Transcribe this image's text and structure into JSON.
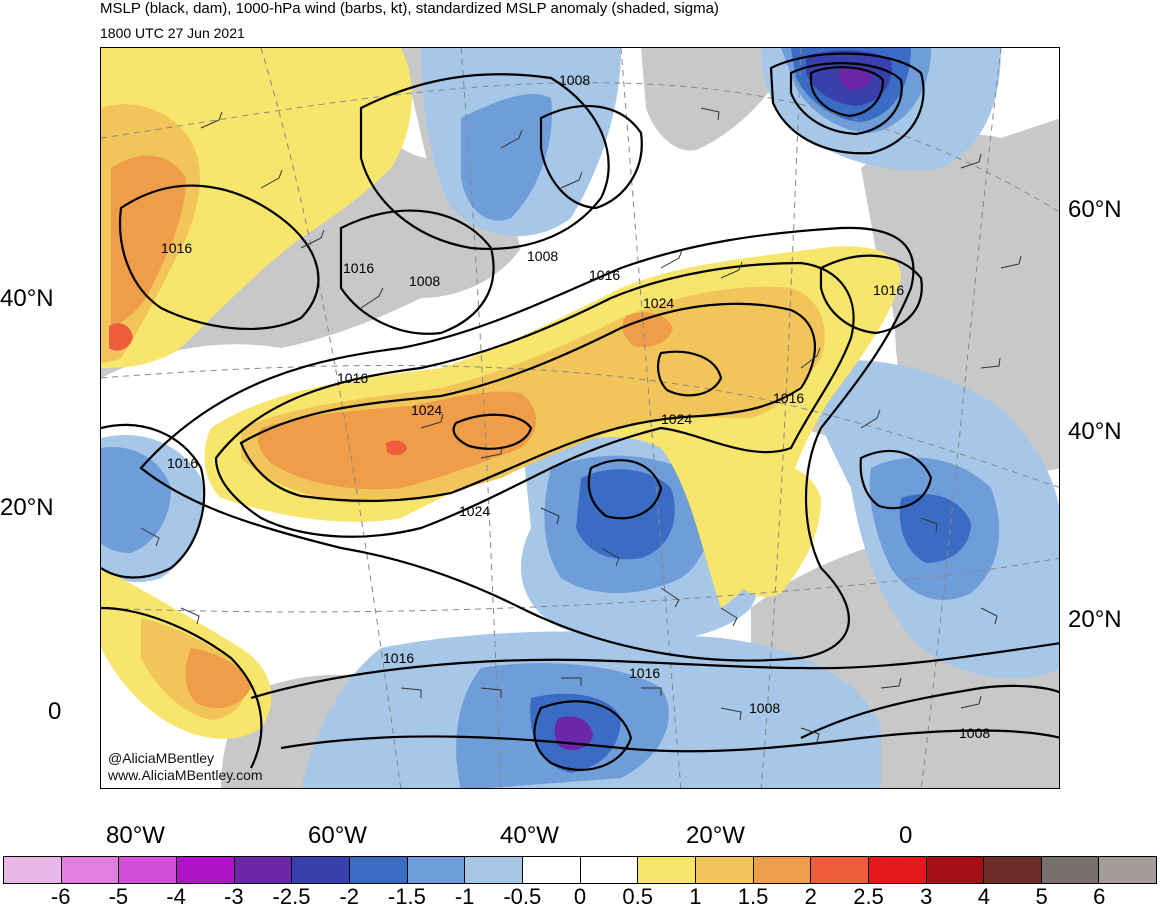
{
  "header": {
    "title": "MSLP (black, dam), 1000-hPa wind (barbs, kt), standardized MSLP anomaly (shaded, sigma)",
    "valid_time": "1800 UTC 27 Jun 2021"
  },
  "credits": {
    "handle": "@AliciaMBentley",
    "website": "www.AliciaMBentley.com"
  },
  "axes": {
    "left_lat_labels": [
      "40°N",
      "20°N",
      "0"
    ],
    "right_lat_labels": [
      "60°N",
      "40°N",
      "20°N"
    ],
    "bottom_lon_labels": [
      "80°W",
      "60°W",
      "40°W",
      "20°W",
      "0"
    ]
  },
  "isobar_labels": [
    "1016",
    "1016",
    "1008",
    "1008",
    "1016",
    "1024",
    "1016",
    "1024",
    "1016",
    "1016",
    "1016",
    "1024",
    "1024",
    "1008",
    "1016",
    "1016",
    "1008",
    "1008"
  ],
  "colorbar": {
    "labels": [
      "-6",
      "-5",
      "-4",
      "-3",
      "-2.5",
      "-2",
      "-1.5",
      "-1",
      "-0.5",
      "0",
      "0.5",
      "1",
      "1.5",
      "2",
      "2.5",
      "3",
      "4",
      "5",
      "6"
    ],
    "colors": [
      "#e9b8e6",
      "#e17fe0",
      "#d44ed9",
      "#b012c8",
      "#6a27a8",
      "#3a3fae",
      "#3a6cc4",
      "#6e9dd9",
      "#a6c7e7",
      "#ffffff",
      "#ffffff",
      "#f8e66c",
      "#f2c55a",
      "#ef9d48",
      "#ee5e3d",
      "#e5171a",
      "#a40f16",
      "#6e2b2a",
      "#77706f",
      "#a39c9b"
    ]
  },
  "colors": {
    "land_gray": "#c8c8c8",
    "anomaly_neg_light": "#a6c7e7",
    "anomaly_neg_mid": "#6e9dd9",
    "anomaly_neg_strong": "#3a6cc4",
    "anomaly_neg_deep": "#3a3fae",
    "anomaly_neg_extreme": "#6a27a8",
    "anomaly_pos_light": "#f8e66c",
    "anomaly_pos_mid": "#f2c55a",
    "anomaly_pos_strong": "#ef9d48",
    "anomaly_pos_high": "#ee5e3d"
  }
}
